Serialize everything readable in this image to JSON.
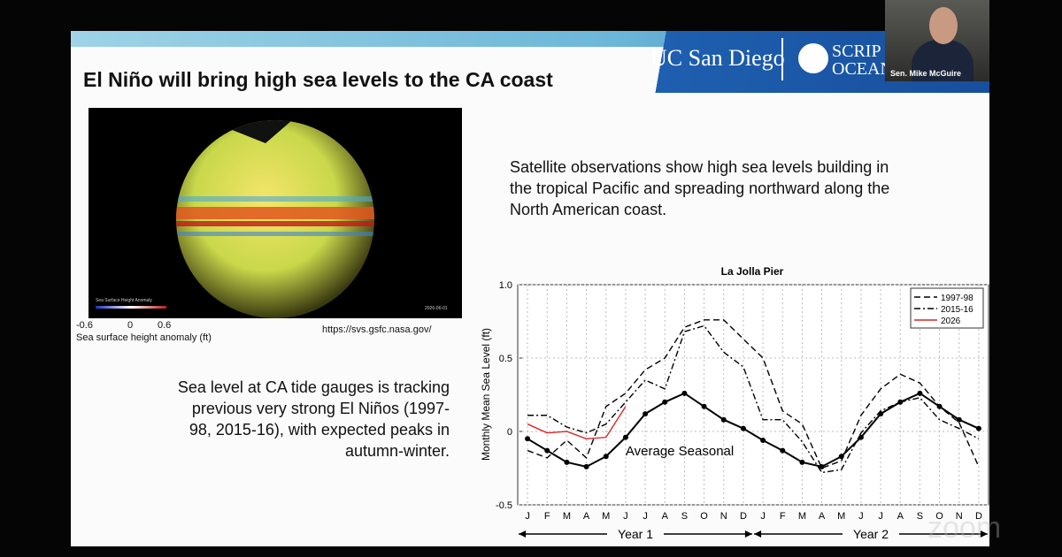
{
  "window": {
    "participant_name": "Sen. Mike McGuire",
    "watermark": "zoom"
  },
  "slide": {
    "title": "El Niño will bring high sea levels to the CA coast",
    "logos": [
      "UC San Diego",
      "SCRIP",
      "OCEAN"
    ],
    "image": {
      "colorbar_title": "Sea Surface Height Anomaly",
      "date": "2026-06-01",
      "colorbar_ticks": [
        "-0.6",
        "0",
        "0.6"
      ],
      "caption": "Sea surface height anomaly (ft)",
      "source": "https://svs.gsfc.nasa.gov/"
    },
    "text_right": [
      "Satellite observations show high sea levels building in",
      "the tropical Pacific and spreading northward along the",
      "North American coast."
    ],
    "text_left": [
      "Sea level at CA tide gauges is tracking",
      "previous very strong El Niños (1997-",
      "98, 2015-16), with expected peaks in",
      "autumn-winter."
    ]
  },
  "chart_data": {
    "type": "line",
    "title": "La Jolla Pier",
    "y_label": "Monthly Mean Sea Level (ft)",
    "categories": [
      "J",
      "F",
      "M",
      "A",
      "M",
      "J",
      "J",
      "A",
      "S",
      "O",
      "N",
      "D",
      "J",
      "F",
      "M",
      "A",
      "M",
      "J",
      "J",
      "A",
      "S",
      "O",
      "N",
      "D"
    ],
    "annotations": [
      "Year 1",
      "Year 2"
    ],
    "ylim": [
      -0.5,
      1.0
    ],
    "yticks": [
      {
        "value": 1.0,
        "label": "1.0"
      },
      0.5,
      0,
      -0.5
    ],
    "grid": true,
    "legend": "upper right",
    "series": [
      {
        "name": "Average Seasonal",
        "color": "#000000",
        "dash": "solid",
        "marker": "circle",
        "in_legend": false,
        "values": [
          -0.05,
          -0.13,
          -0.21,
          -0.24,
          -0.17,
          -0.04,
          0.12,
          0.2,
          0.26,
          0.17,
          0.08,
          0.02,
          -0.06,
          -0.13,
          -0.21,
          -0.24,
          -0.17,
          -0.04,
          0.12,
          0.2,
          0.26,
          0.17,
          0.08,
          0.02
        ]
      },
      {
        "name": "1997-98",
        "color": "#000000",
        "dash": "dashed",
        "values": [
          -0.13,
          -0.18,
          -0.06,
          -0.18,
          0.17,
          0.26,
          0.42,
          0.5,
          0.71,
          0.76,
          0.76,
          0.63,
          0.5,
          0.14,
          0.05,
          -0.25,
          -0.2,
          0.11,
          0.29,
          0.39,
          0.33,
          0.17,
          0.06,
          -0.24
        ]
      },
      {
        "name": "2015-16",
        "color": "#000000",
        "dash": "dashdot",
        "values": [
          0.11,
          0.11,
          0.03,
          -0.01,
          0.05,
          0.2,
          0.35,
          0.29,
          0.68,
          0.72,
          0.54,
          0.44,
          0.08,
          0.08,
          -0.07,
          -0.28,
          -0.26,
          -0.01,
          0.14,
          0.2,
          0.23,
          0.08,
          0.02,
          -0.05
        ]
      },
      {
        "name": "2026",
        "color": "#d62728",
        "dash": "solid",
        "values": [
          0.05,
          -0.01,
          0,
          -0.05,
          -0.04,
          0.17,
          null,
          null,
          null,
          null,
          null,
          null,
          null,
          null,
          null,
          null,
          null,
          null,
          null,
          null,
          null,
          null,
          null,
          null
        ]
      }
    ]
  }
}
